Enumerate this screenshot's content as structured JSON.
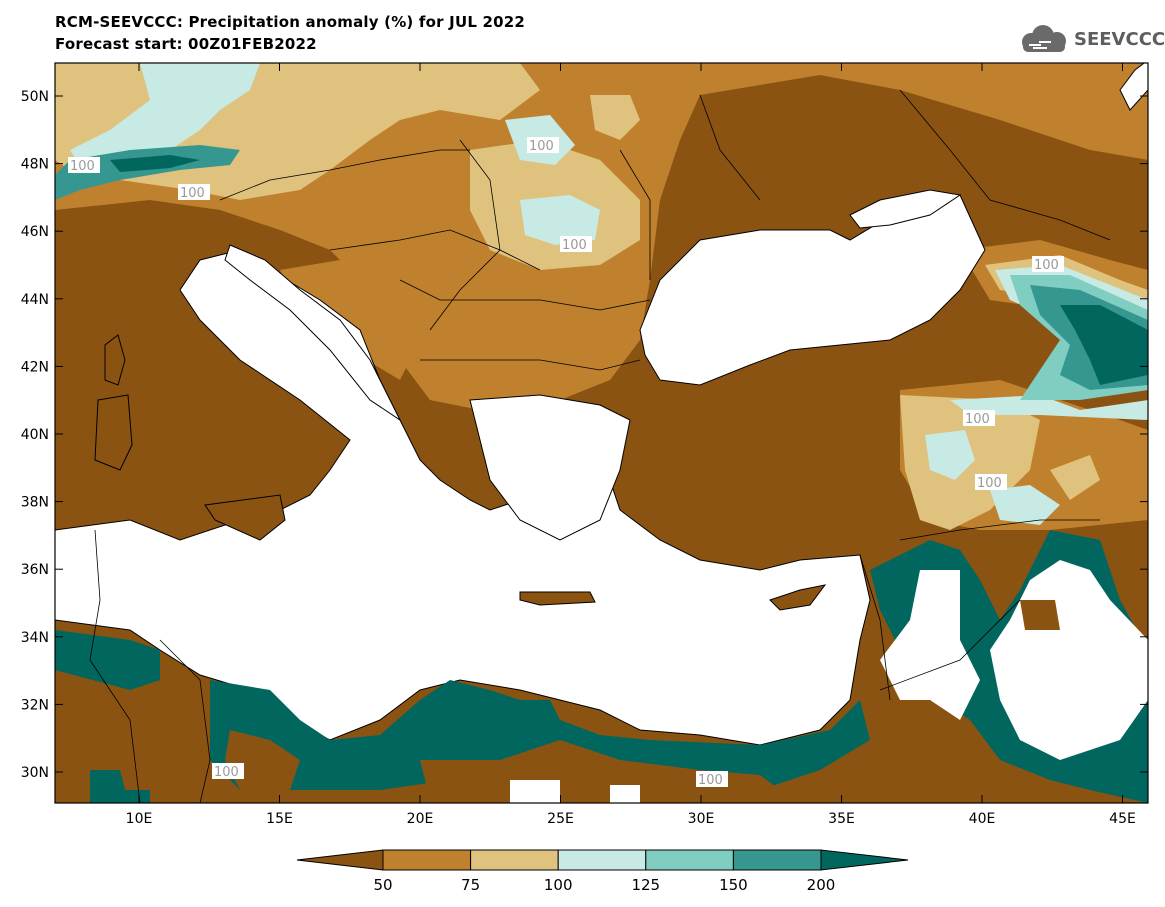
{
  "header": {
    "title": "RCM-SEEVCCC: Precipitation anomaly (%) for JUL 2022",
    "subtitle": "Forecast start: 00Z01FEB2022",
    "logo_text": "SEEVCCC",
    "logo_icon": "cloud-icon"
  },
  "map": {
    "lat_labels": [
      "50N",
      "48N",
      "46N",
      "44N",
      "42N",
      "40N",
      "38N",
      "36N",
      "34N",
      "32N",
      "30N"
    ],
    "lon_labels": [
      "10E",
      "15E",
      "20E",
      "25E",
      "30E",
      "35E",
      "40E",
      "45E"
    ],
    "contour_labels": [
      "100",
      "100",
      "100",
      "100",
      "100",
      "100",
      "100",
      "100",
      "100"
    ],
    "colors": {
      "below50": "#8b5312",
      "c50_75": "#bf812d",
      "c75_100": "#dfc27d",
      "c100_125": "#c7eae5",
      "c125_150": "#80cdc1",
      "c150_200": "#35978f",
      "above200": "#01665e"
    }
  },
  "colorbar": {
    "ticks": [
      "50",
      "75",
      "100",
      "125",
      "150",
      "200"
    ],
    "colors": [
      "#8b5312",
      "#bf812d",
      "#dfc27d",
      "#c7eae5",
      "#80cdc1",
      "#35978f",
      "#01665e"
    ]
  }
}
